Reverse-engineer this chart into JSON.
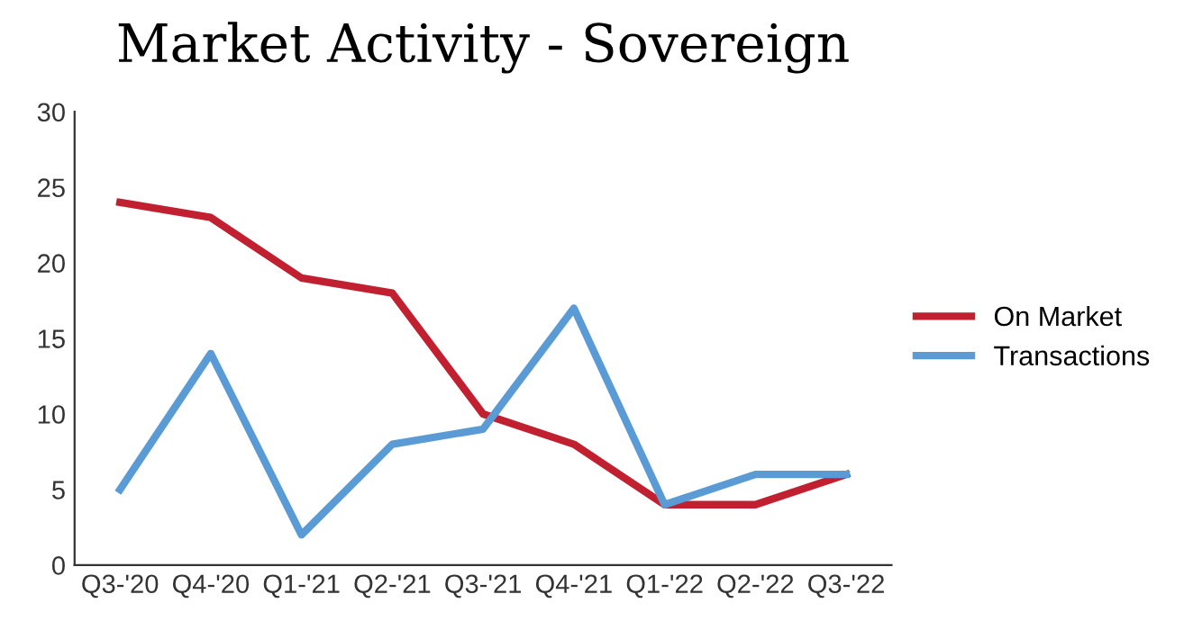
{
  "chart_data": {
    "type": "line",
    "title": "Market Activity - Sovereign",
    "categories": [
      "Q3-'20",
      "Q4-'20",
      "Q1-'21",
      "Q2-'21",
      "Q3-'21",
      "Q4-'21",
      "Q1-'22",
      "Q2-'22",
      "Q3-'22"
    ],
    "series": [
      {
        "name": "On Market",
        "color": "#c0202f",
        "values": [
          24,
          23,
          19,
          18,
          10,
          8,
          4,
          4,
          6
        ]
      },
      {
        "name": "Transactions",
        "color": "#5b9bd5",
        "values": [
          5,
          14,
          2,
          8,
          9,
          17,
          4,
          6,
          6
        ]
      }
    ],
    "ylim": [
      0,
      30
    ],
    "yticks": [
      0,
      5,
      10,
      15,
      20,
      25,
      30
    ],
    "grid": false,
    "legend": "right",
    "marker": "none",
    "line_style": "solid"
  }
}
